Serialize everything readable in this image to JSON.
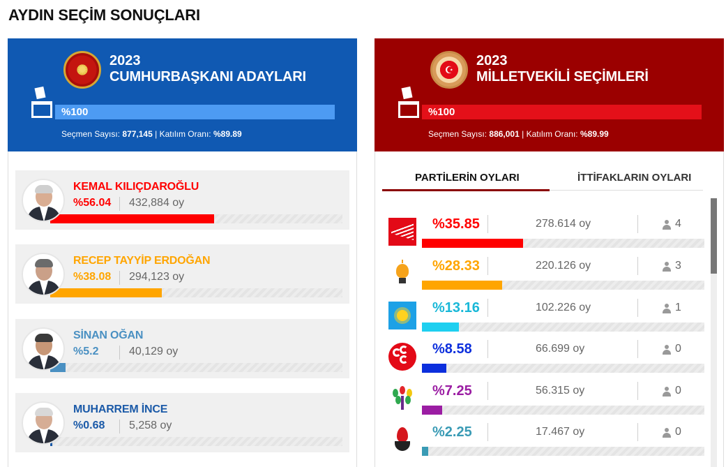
{
  "page": {
    "title": "AYDIN SEÇİM SONUÇLARI"
  },
  "presidential": {
    "year": "2023",
    "title": "CUMHURBAŞKANI ADAYLARI",
    "progress_label": "%100",
    "progress_value": 1.0,
    "stats_voters_label": "Seçmen Sayısı:",
    "stats_voters": "877,145",
    "stats_sep": "|",
    "stats_turnout_label": "Katılım Oranı:",
    "stats_turnout": "%89.89",
    "candidates": [
      {
        "name": "KEMAL KILIÇDAROĞLU",
        "pct": "%56.04",
        "share": 56.04,
        "votes": "432,884 oy",
        "color": "#ff0000",
        "avatar_hair": "#cfcfcf",
        "avatar_skin": "#d9ad92"
      },
      {
        "name": "RECEP TAYYİP ERDOĞAN",
        "pct": "%38.08",
        "share": 38.08,
        "votes": "294,123 oy",
        "color": "#ffa500",
        "avatar_hair": "#6b6b6b",
        "avatar_skin": "#caa088"
      },
      {
        "name": "SİNAN OĞAN",
        "pct": "%5.2",
        "share": 5.2,
        "votes": "40,129 oy",
        "color": "#4a90c2",
        "avatar_hair": "#3a3a3a",
        "avatar_skin": "#c79777"
      },
      {
        "name": "MUHARREM İNCE",
        "pct": "%0.68",
        "share": 0.68,
        "votes": "5,258 oy",
        "color": "#1b5aa8",
        "avatar_hair": "#d8d8d8",
        "avatar_skin": "#d6ad95"
      }
    ]
  },
  "parliament": {
    "year": "2023",
    "title": "MİLLETVEKİLİ SEÇİMLERİ",
    "progress_label": "%100",
    "progress_value": 1.0,
    "stats_voters_label": "Seçmen Sayısı:",
    "stats_voters": "886,001",
    "stats_sep": "|",
    "stats_turnout_label": "Katılım Oranı:",
    "stats_turnout": "%89.99",
    "tabs": {
      "active": "PARTİLERİN OYLARI",
      "inactive": "İTTİFAKLARIN OYLARI"
    },
    "parties": [
      {
        "logo": "chp-logo",
        "pct": "%35.85",
        "share": 35.85,
        "votes": "278.614 oy",
        "seats": "4",
        "color": "#ff0000"
      },
      {
        "logo": "akp-logo",
        "pct": "%28.33",
        "share": 28.33,
        "votes": "220.126 oy",
        "seats": "3",
        "color": "#ffa500"
      },
      {
        "logo": "iyi-logo",
        "pct": "%13.16",
        "share": 13.16,
        "votes": "102.226 oy",
        "seats": "1",
        "color": "#1ecff0"
      },
      {
        "logo": "mhp-logo",
        "pct": "%8.58",
        "share": 8.58,
        "votes": "66.699 oy",
        "seats": "0",
        "color": "#0c2fdd"
      },
      {
        "logo": "ysp-logo",
        "pct": "%7.25",
        "share": 7.25,
        "votes": "56.315 oy",
        "seats": "0",
        "color": "#9b1da3"
      },
      {
        "logo": "tip-logo",
        "pct": "%2.25",
        "share": 2.25,
        "votes": "17.467 oy",
        "seats": "0",
        "color": "#3a9bb5"
      }
    ]
  }
}
